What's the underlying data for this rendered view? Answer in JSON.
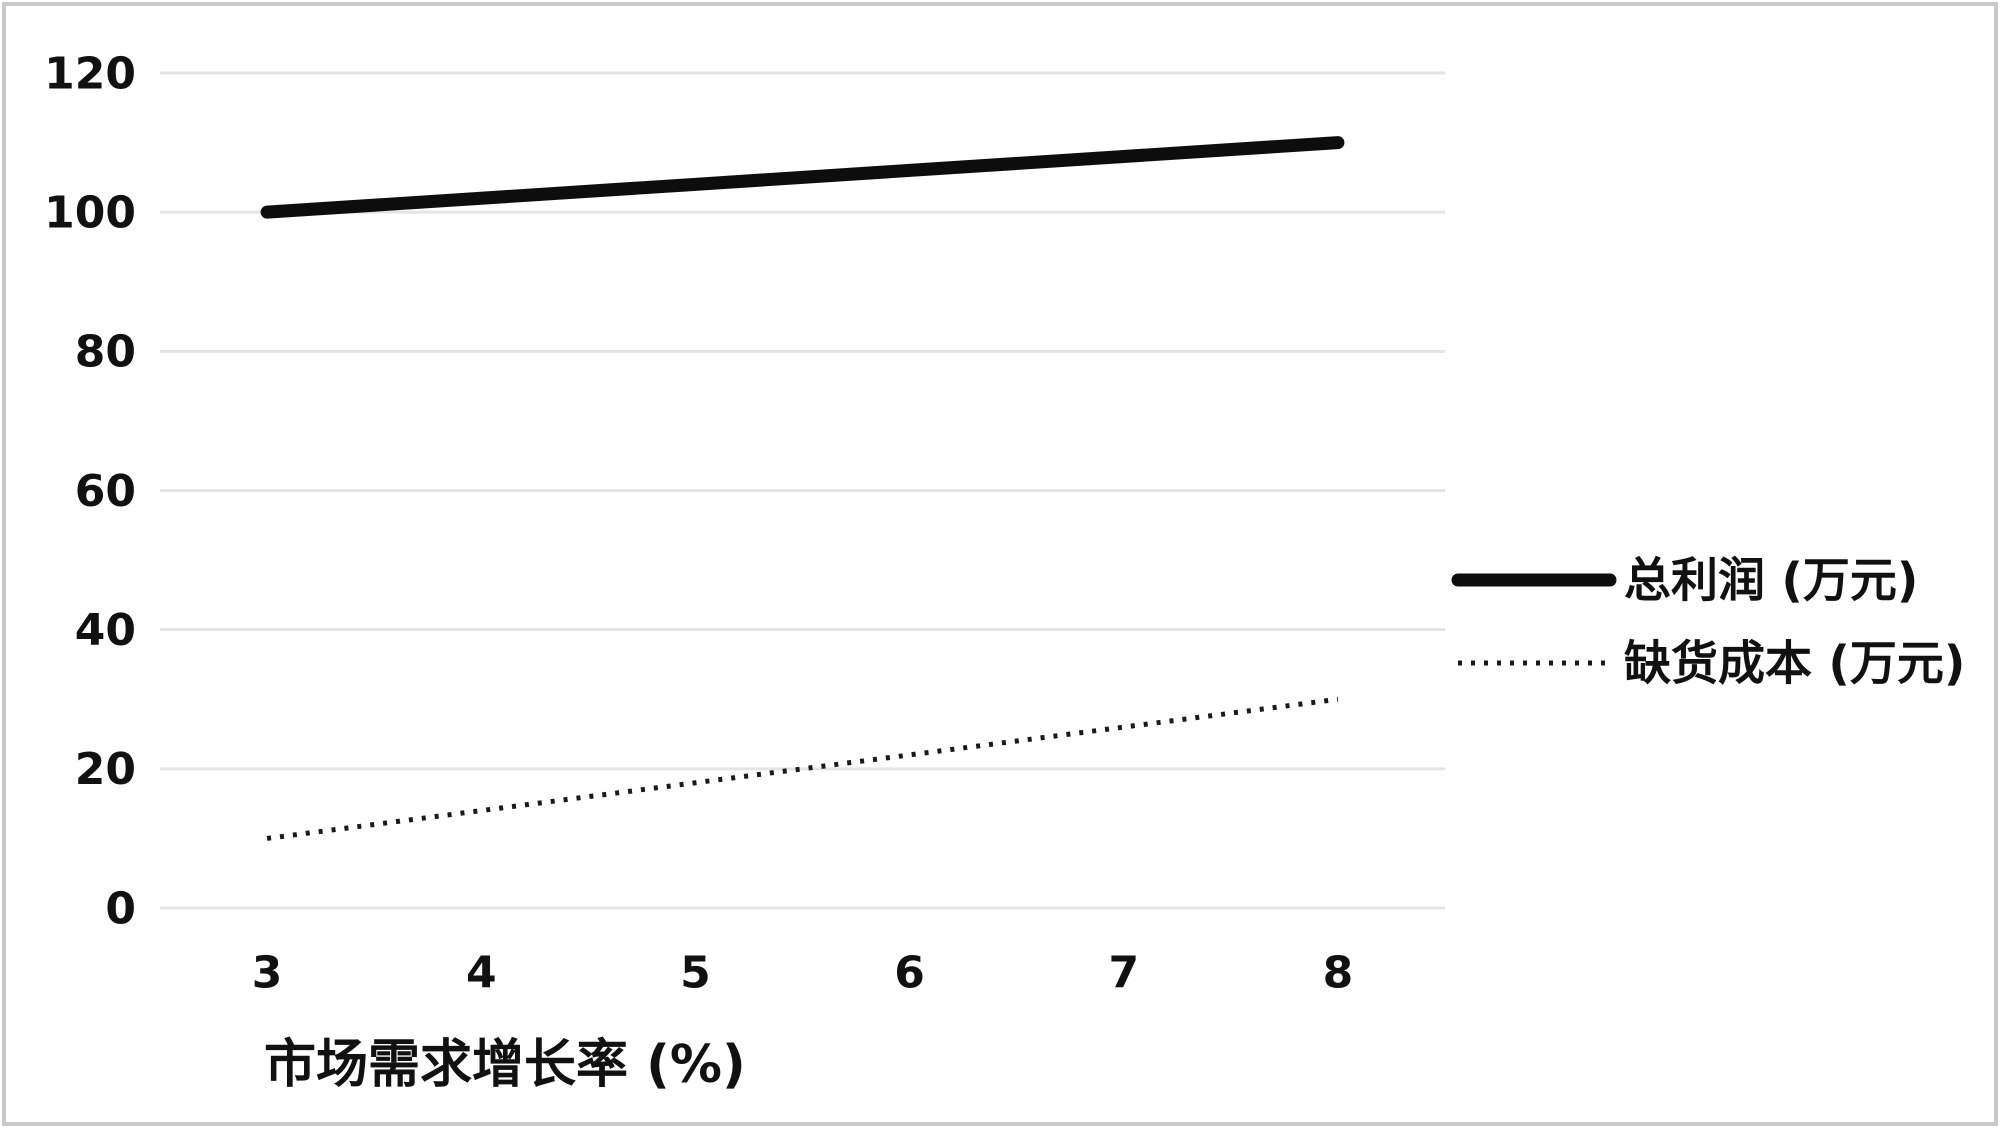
{
  "frame": {
    "background_color": "#ffffff",
    "border_color": "#c9c9c9"
  },
  "chart_data": {
    "type": "line",
    "x": [
      3,
      4,
      5,
      6,
      7,
      8
    ],
    "series": [
      {
        "name": "总利润 (万元)",
        "values": [
          100,
          102,
          104,
          106,
          108,
          110
        ],
        "style": "solid",
        "color": "#0d0d0d",
        "width": 13
      },
      {
        "name": "缺货成本 (万元)",
        "values": [
          10,
          14,
          18,
          22,
          26,
          30
        ],
        "style": "dotted",
        "color": "#1a1a1a",
        "width": 5
      }
    ],
    "title": "",
    "xlabel": "市场需求增长率 (%)",
    "ylabel": "",
    "ylim": [
      0,
      120
    ],
    "yticks": [
      0,
      20,
      40,
      60,
      80,
      100,
      120
    ],
    "xticks": [
      "3",
      "4",
      "5",
      "6",
      "7",
      "8"
    ],
    "grid": "horizontal",
    "gridline_color": "#e4e4e4",
    "tick_text_color": "#111111",
    "legend_position": "right"
  }
}
